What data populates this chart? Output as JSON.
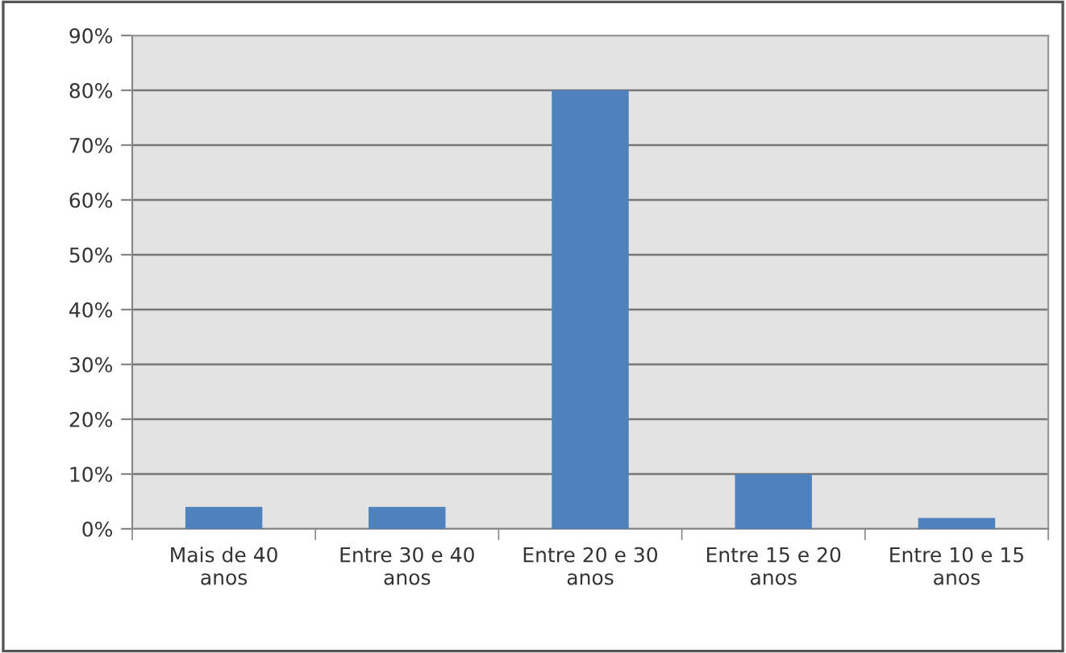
{
  "chart_data": {
    "type": "bar",
    "categories": [
      "Mais de 40\nanos",
      "Entre 30 e 40\nanos",
      "Entre 20 e 30\nanos",
      "Entre 15 e 20\nanos",
      "Entre 10 e 15\nanos"
    ],
    "values": [
      4,
      4,
      80,
      10,
      2
    ],
    "color": "#4f81bd",
    "ylim": [
      0,
      90
    ],
    "yticks": [
      {
        "value": 0,
        "label": "0%"
      },
      {
        "value": 10,
        "label": "10%"
      },
      {
        "value": 20,
        "label": "20%"
      },
      {
        "value": 30,
        "label": "30%"
      },
      {
        "value": 40,
        "label": "40%"
      },
      {
        "value": 50,
        "label": "50%"
      },
      {
        "value": 60,
        "label": "60%"
      },
      {
        "value": 70,
        "label": "70%"
      },
      {
        "value": 80,
        "label": "80%"
      },
      {
        "value": 90,
        "label": "90%"
      }
    ],
    "grid": "y",
    "legend": false
  }
}
